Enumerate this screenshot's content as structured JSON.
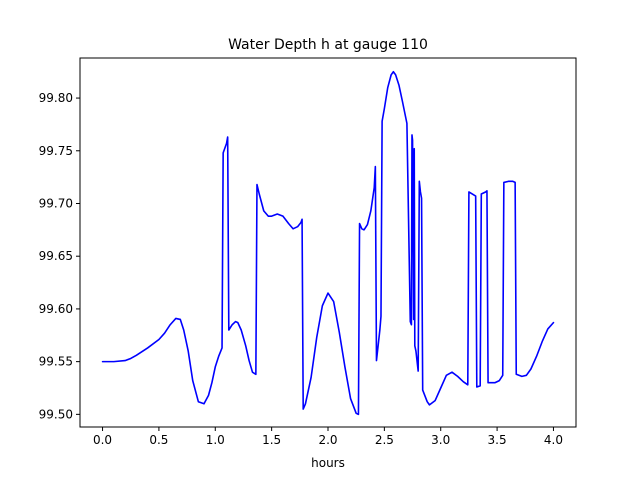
{
  "chart_data": {
    "type": "line",
    "title": "Water Depth h at gauge 110",
    "xlabel": "hours",
    "ylabel": "",
    "xlim": [
      -0.2,
      4.2
    ],
    "ylim": [
      99.488,
      99.838
    ],
    "xticks": [
      0.0,
      0.5,
      1.0,
      1.5,
      2.0,
      2.5,
      3.0,
      3.5,
      4.0
    ],
    "xtick_labels": [
      "0.0",
      "0.5",
      "1.0",
      "1.5",
      "2.0",
      "2.5",
      "3.0",
      "3.5",
      "4.0"
    ],
    "yticks": [
      99.5,
      99.55,
      99.6,
      99.65,
      99.7,
      99.75,
      99.8
    ],
    "ytick_labels": [
      "99.50",
      "99.55",
      "99.60",
      "99.65",
      "99.70",
      "99.75",
      "99.80"
    ],
    "grid": false,
    "series": [
      {
        "color": "#0000ff",
        "x": [
          0.0,
          0.1,
          0.2,
          0.25,
          0.3,
          0.4,
          0.5,
          0.55,
          0.6,
          0.65,
          0.69,
          0.72,
          0.76,
          0.8,
          0.85,
          0.9,
          0.94,
          0.97,
          1.0,
          1.03,
          1.06,
          1.07,
          1.1,
          1.11,
          1.12,
          1.15,
          1.18,
          1.2,
          1.23,
          1.27,
          1.3,
          1.33,
          1.36,
          1.37,
          1.39,
          1.43,
          1.47,
          1.5,
          1.55,
          1.6,
          1.65,
          1.69,
          1.73,
          1.76,
          1.77,
          1.78,
          1.8,
          1.85,
          1.9,
          1.95,
          2.0,
          2.05,
          2.1,
          2.15,
          2.2,
          2.25,
          2.27,
          2.28,
          2.3,
          2.32,
          2.35,
          2.38,
          2.41,
          2.42,
          2.43,
          2.46,
          2.47,
          2.48,
          2.5,
          2.53,
          2.56,
          2.58,
          2.6,
          2.63,
          2.66,
          2.7,
          2.73,
          2.74,
          2.745,
          2.75,
          2.76,
          2.765,
          2.77,
          2.78,
          2.8,
          2.81,
          2.82,
          2.83,
          2.84,
          2.88,
          2.9,
          2.95,
          3.0,
          3.05,
          3.1,
          3.15,
          3.2,
          3.24,
          3.25,
          3.31,
          3.32,
          3.35,
          3.36,
          3.4,
          3.41,
          3.42,
          3.48,
          3.52,
          3.55,
          3.56,
          3.6,
          3.64,
          3.66,
          3.67,
          3.72,
          3.76,
          3.8,
          3.85,
          3.9,
          3.95,
          4.0
        ],
        "y": [
          99.55,
          99.55,
          99.551,
          99.553,
          99.556,
          99.563,
          99.571,
          99.577,
          99.585,
          99.591,
          99.59,
          99.58,
          99.56,
          99.532,
          99.512,
          99.51,
          99.518,
          99.53,
          99.545,
          99.555,
          99.563,
          99.748,
          99.757,
          99.763,
          99.58,
          99.585,
          99.588,
          99.587,
          99.58,
          99.565,
          99.551,
          99.54,
          99.538,
          99.718,
          99.709,
          99.693,
          99.688,
          99.688,
          99.69,
          99.688,
          99.681,
          99.676,
          99.678,
          99.682,
          99.685,
          99.505,
          99.51,
          99.535,
          99.573,
          99.603,
          99.615,
          99.607,
          99.578,
          99.545,
          99.515,
          99.501,
          99.5,
          99.681,
          99.676,
          99.675,
          99.68,
          99.693,
          99.715,
          99.735,
          99.551,
          99.58,
          99.593,
          99.778,
          99.79,
          99.81,
          99.822,
          99.825,
          99.822,
          99.812,
          99.797,
          99.776,
          99.588,
          99.585,
          99.765,
          99.76,
          99.59,
          99.752,
          99.565,
          99.56,
          99.541,
          99.721,
          99.711,
          99.705,
          99.523,
          99.512,
          99.509,
          99.513,
          99.525,
          99.537,
          99.54,
          99.536,
          99.531,
          99.528,
          99.711,
          99.707,
          99.526,
          99.527,
          99.709,
          99.711,
          99.712,
          99.53,
          99.53,
          99.532,
          99.537,
          99.72,
          99.721,
          99.721,
          99.72,
          99.538,
          99.536,
          99.537,
          99.543,
          99.555,
          99.569,
          99.581,
          99.587
        ]
      }
    ]
  }
}
